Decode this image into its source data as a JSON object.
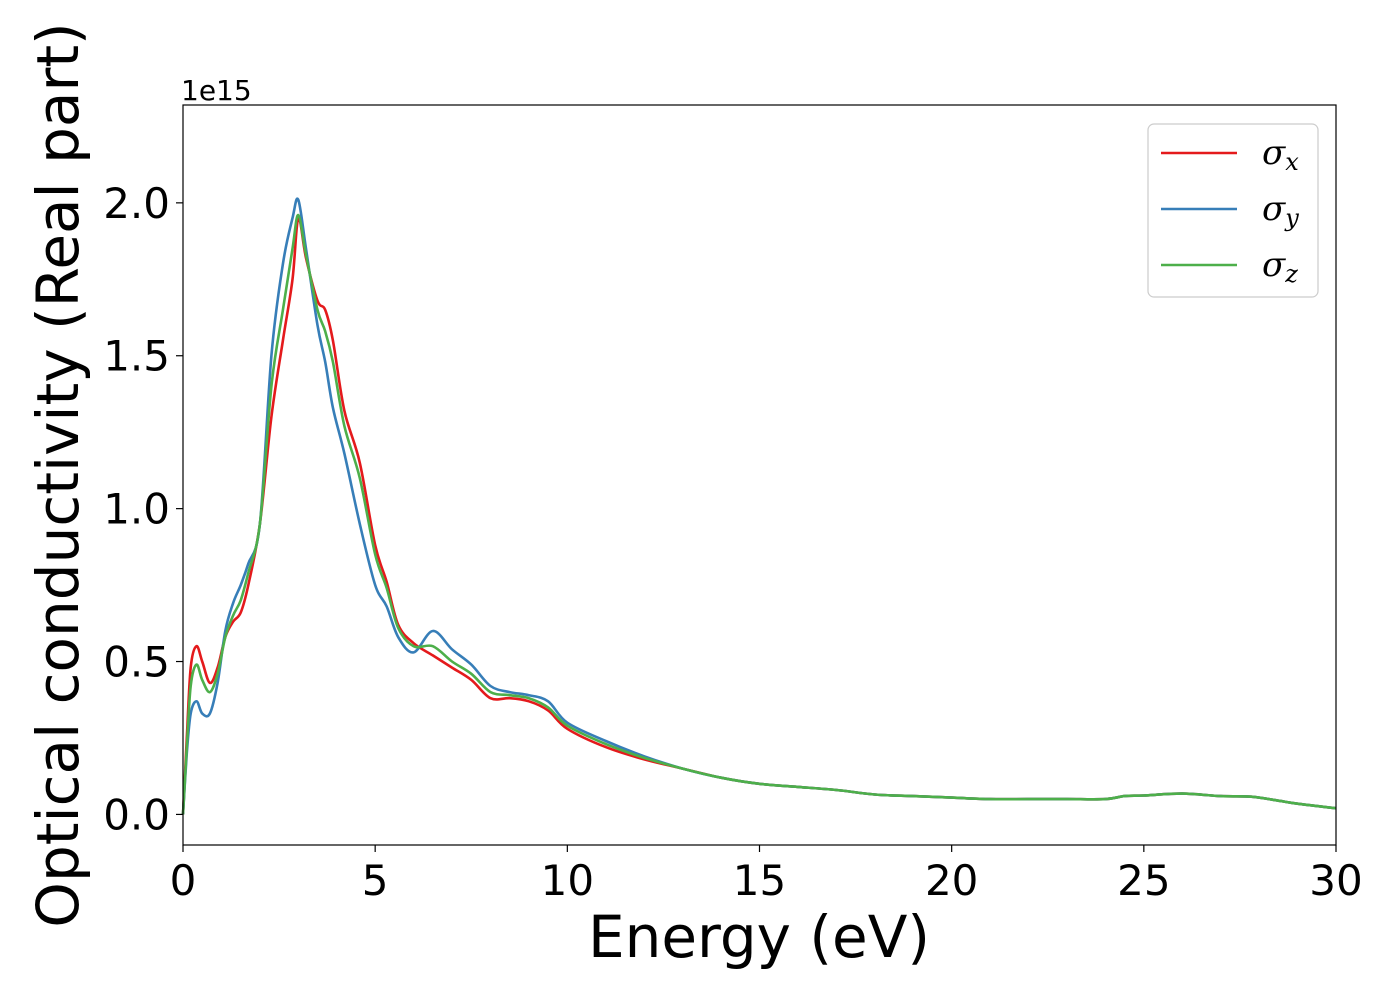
{
  "chart_data": {
    "type": "line",
    "xlabel": "Energy (eV)",
    "ylabel": "Optical conductivity (Real part)",
    "y_offset_text": "1e15",
    "y_scale_factor": 1000000000000000.0,
    "xlim": [
      0,
      30
    ],
    "ylim": [
      -0.1,
      2.32
    ],
    "x_ticks": [
      0,
      5,
      10,
      15,
      20,
      25,
      30
    ],
    "x_tick_labels": [
      "0",
      "5",
      "10",
      "15",
      "20",
      "25",
      "30"
    ],
    "y_ticks": [
      0.0,
      0.5,
      1.0,
      1.5,
      2.0
    ],
    "y_tick_labels": [
      "0.0",
      "0.5",
      "1.0",
      "1.5",
      "2.0"
    ],
    "grid": false,
    "legend_position": "top-right",
    "series": [
      {
        "name": "σ",
        "subscript": "x",
        "color": "#e41a1c",
        "x": [
          0,
          0.1,
          0.2,
          0.35,
          0.5,
          0.7,
          0.9,
          1.1,
          1.3,
          1.5,
          1.7,
          2.0,
          2.3,
          2.6,
          2.85,
          3.0,
          3.2,
          3.5,
          3.7,
          3.9,
          4.2,
          4.6,
          5.0,
          5.3,
          5.6,
          6.0,
          6.5,
          7.0,
          7.5,
          8.0,
          8.5,
          9.0,
          9.5,
          10.0,
          11.0,
          12.0,
          13.0,
          14.0,
          15.0,
          16.0,
          17.0,
          18.0,
          19.0,
          20.0,
          21.0,
          22.0,
          23.0,
          24.0,
          24.5,
          25.0,
          26.0,
          27.0,
          27.8,
          28.5,
          29.0,
          30.0
        ],
        "y": [
          0.0,
          0.25,
          0.48,
          0.55,
          0.5,
          0.43,
          0.48,
          0.58,
          0.63,
          0.66,
          0.75,
          0.95,
          1.3,
          1.55,
          1.75,
          1.95,
          1.82,
          1.68,
          1.65,
          1.55,
          1.32,
          1.15,
          0.88,
          0.76,
          0.62,
          0.56,
          0.52,
          0.48,
          0.44,
          0.38,
          0.38,
          0.37,
          0.34,
          0.28,
          0.22,
          0.18,
          0.15,
          0.12,
          0.1,
          0.09,
          0.08,
          0.065,
          0.06,
          0.055,
          0.05,
          0.05,
          0.05,
          0.05,
          0.06,
          0.062,
          0.068,
          0.06,
          0.058,
          0.045,
          0.035,
          0.02
        ]
      },
      {
        "name": "σ",
        "subscript": "y",
        "color": "#377eb8",
        "x": [
          0,
          0.1,
          0.2,
          0.35,
          0.5,
          0.7,
          0.9,
          1.1,
          1.3,
          1.5,
          1.7,
          2.0,
          2.3,
          2.6,
          2.85,
          3.0,
          3.2,
          3.5,
          3.7,
          3.9,
          4.2,
          4.6,
          5.0,
          5.3,
          5.6,
          6.0,
          6.5,
          7.0,
          7.5,
          8.0,
          8.5,
          9.0,
          9.5,
          10.0,
          11.0,
          12.0,
          13.0,
          14.0,
          15.0,
          16.0,
          17.0,
          18.0,
          19.0,
          20.0,
          21.0,
          22.0,
          23.0,
          24.0,
          24.5,
          25.0,
          26.0,
          27.0,
          27.8,
          28.5,
          29.0,
          30.0
        ],
        "y": [
          0.0,
          0.2,
          0.33,
          0.37,
          0.33,
          0.33,
          0.43,
          0.6,
          0.69,
          0.75,
          0.82,
          0.95,
          1.5,
          1.8,
          1.95,
          2.01,
          1.85,
          1.6,
          1.48,
          1.33,
          1.18,
          0.95,
          0.75,
          0.68,
          0.58,
          0.53,
          0.6,
          0.54,
          0.49,
          0.42,
          0.4,
          0.39,
          0.37,
          0.3,
          0.24,
          0.19,
          0.15,
          0.12,
          0.1,
          0.09,
          0.08,
          0.065,
          0.06,
          0.055,
          0.05,
          0.05,
          0.05,
          0.05,
          0.06,
          0.062,
          0.068,
          0.06,
          0.058,
          0.045,
          0.035,
          0.02
        ]
      },
      {
        "name": "σ",
        "subscript": "z",
        "color": "#4daf4a",
        "x": [
          0,
          0.1,
          0.2,
          0.35,
          0.5,
          0.7,
          0.9,
          1.1,
          1.3,
          1.5,
          1.7,
          2.0,
          2.3,
          2.6,
          2.85,
          3.0,
          3.2,
          3.5,
          3.7,
          3.9,
          4.2,
          4.6,
          5.0,
          5.3,
          5.6,
          6.0,
          6.5,
          7.0,
          7.5,
          8.0,
          8.5,
          9.0,
          9.5,
          10.0,
          11.0,
          12.0,
          13.0,
          14.0,
          15.0,
          16.0,
          17.0,
          18.0,
          19.0,
          20.0,
          21.0,
          22.0,
          23.0,
          24.0,
          24.5,
          25.0,
          26.0,
          27.0,
          27.8,
          28.5,
          29.0,
          30.0
        ],
        "y": [
          0.0,
          0.22,
          0.42,
          0.49,
          0.44,
          0.4,
          0.46,
          0.58,
          0.65,
          0.7,
          0.79,
          0.95,
          1.4,
          1.65,
          1.85,
          1.96,
          1.83,
          1.65,
          1.58,
          1.48,
          1.27,
          1.1,
          0.85,
          0.74,
          0.61,
          0.55,
          0.55,
          0.5,
          0.46,
          0.4,
          0.39,
          0.38,
          0.35,
          0.29,
          0.23,
          0.185,
          0.15,
          0.12,
          0.1,
          0.09,
          0.08,
          0.065,
          0.06,
          0.055,
          0.05,
          0.05,
          0.05,
          0.05,
          0.06,
          0.062,
          0.068,
          0.06,
          0.058,
          0.045,
          0.035,
          0.02
        ]
      }
    ]
  }
}
